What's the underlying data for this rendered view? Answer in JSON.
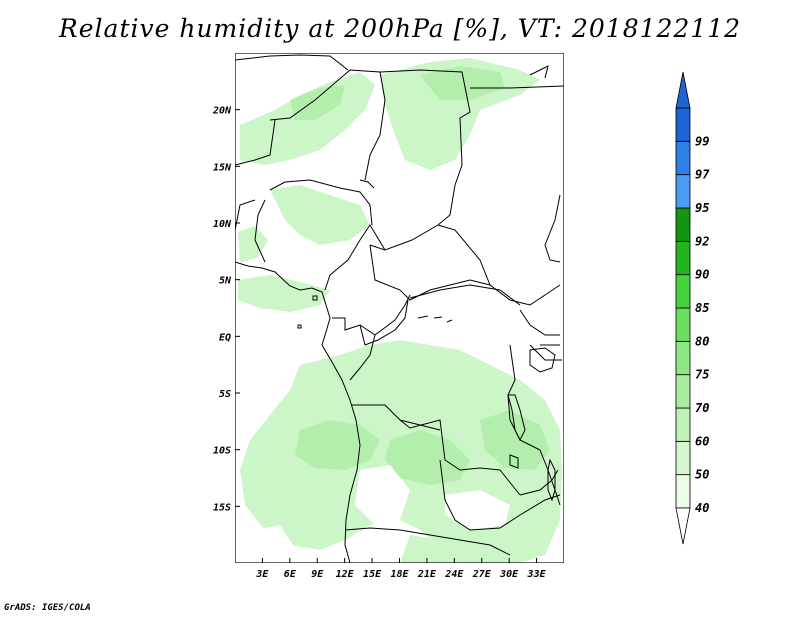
{
  "title": "Relative humidity at 200hPa [%], VT: 2018122112",
  "credit": "GrADS: IGES/COLA",
  "map": {
    "lon_range": [
      0,
      36
    ],
    "lat_range": [
      -20,
      25
    ],
    "lat_ticks": [
      {
        "value": 20,
        "label": "20N"
      },
      {
        "value": 15,
        "label": "15N"
      },
      {
        "value": 10,
        "label": "10N"
      },
      {
        "value": 5,
        "label": "5N"
      },
      {
        "value": 0,
        "label": "EQ"
      },
      {
        "value": -5,
        "label": "5S"
      },
      {
        "value": -10,
        "label": "10S"
      },
      {
        "value": -15,
        "label": "15S"
      }
    ],
    "lon_ticks": [
      {
        "value": 3,
        "label": "3E"
      },
      {
        "value": 6,
        "label": "6E"
      },
      {
        "value": 9,
        "label": "9E"
      },
      {
        "value": 12,
        "label": "12E"
      },
      {
        "value": 15,
        "label": "15E"
      },
      {
        "value": 18,
        "label": "18E"
      },
      {
        "value": 21,
        "label": "21E"
      },
      {
        "value": 24,
        "label": "24E"
      },
      {
        "value": 27,
        "label": "27E"
      },
      {
        "value": 30,
        "label": "30E"
      },
      {
        "value": 33,
        "label": "33E"
      }
    ],
    "field_color_light": "#ccf5c8",
    "field_color_mid": "#b4eead",
    "border_color": "#000000"
  },
  "colorbar": {
    "bins": [
      {
        "from": 40,
        "to": 50,
        "color": "#eafbe6"
      },
      {
        "from": 50,
        "to": 60,
        "color": "#d6f6d0"
      },
      {
        "from": 60,
        "to": 70,
        "color": "#c0f1b8"
      },
      {
        "from": 70,
        "to": 75,
        "color": "#a9eca0"
      },
      {
        "from": 75,
        "to": 80,
        "color": "#8fe685"
      },
      {
        "from": 80,
        "to": 85,
        "color": "#6ede62"
      },
      {
        "from": 85,
        "to": 90,
        "color": "#46d23d"
      },
      {
        "from": 90,
        "to": 92,
        "color": "#24b41e"
      },
      {
        "from": 92,
        "to": 95,
        "color": "#12960f"
      },
      {
        "from": 95,
        "to": 97,
        "color": "#4b9bf0"
      },
      {
        "from": 97,
        "to": 99,
        "color": "#2d7fe6"
      },
      {
        "from": 99,
        "to": 100,
        "color": "#1e64d2"
      }
    ],
    "labels": [
      "40",
      "50",
      "60",
      "70",
      "75",
      "80",
      "85",
      "90",
      "92",
      "95",
      "97",
      "99"
    ],
    "low_cap_color": "#ffffff",
    "high_cap_color": "#1e64d2"
  }
}
